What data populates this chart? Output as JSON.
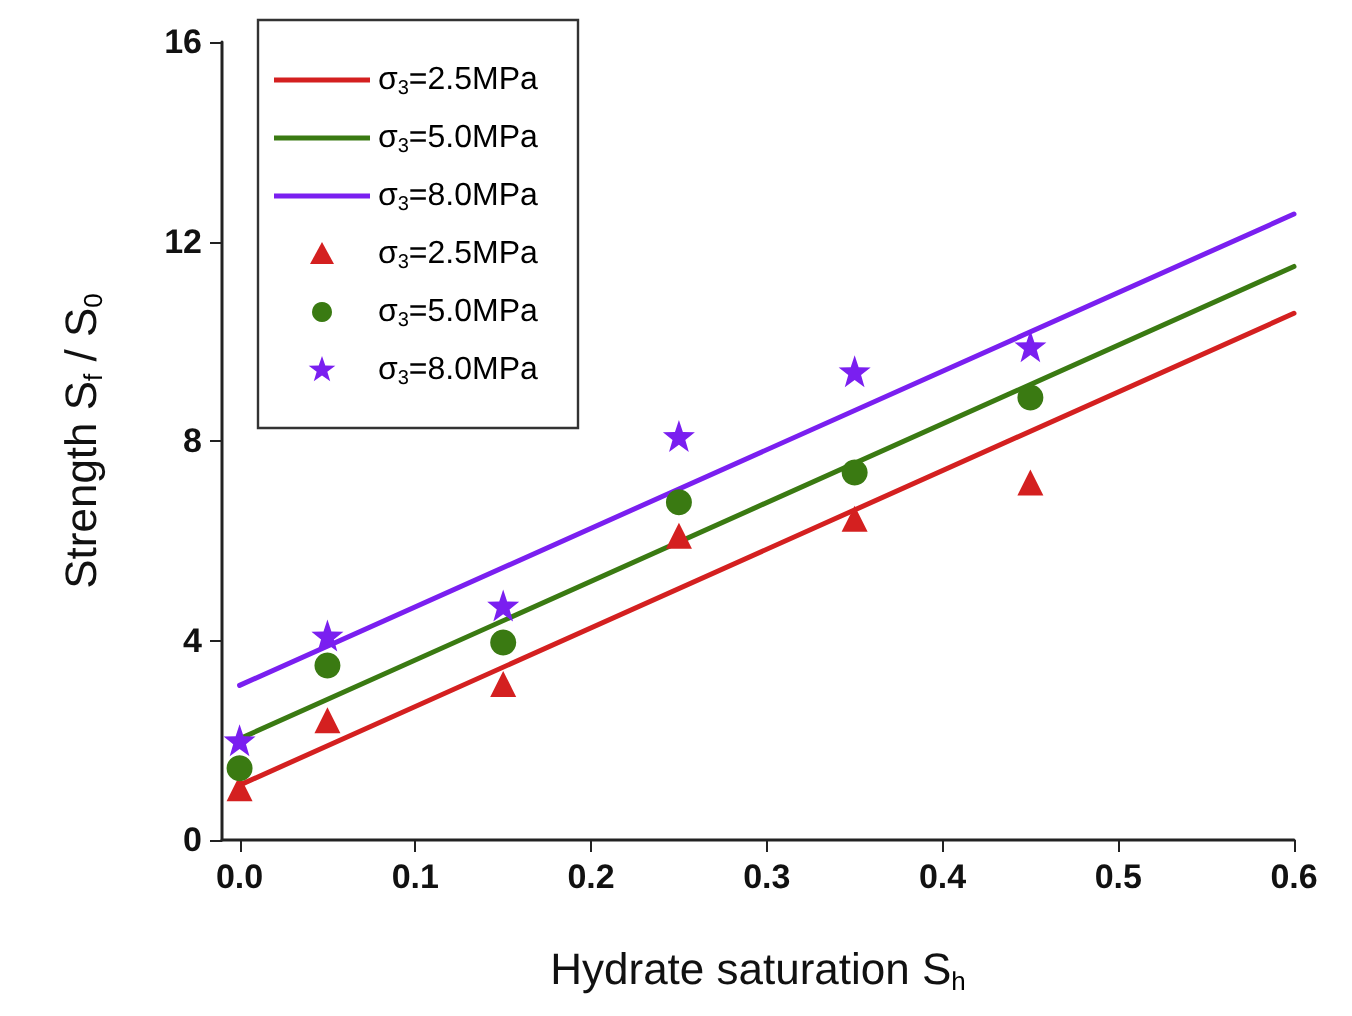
{
  "chart_data": {
    "type": "scatter",
    "xlabel": "Hydrate saturation S$_{h}$",
    "ylabel": "Strength S$_{f}$ / S$_{0}$",
    "xlim": [
      -0.01,
      0.6
    ],
    "xticks": [
      {
        "value": 0,
        "label": "0.0"
      },
      0.1,
      0.2,
      0.3,
      0.4,
      0.5,
      0.6
    ],
    "ylim": [
      0,
      16
    ],
    "yticks": [
      0,
      4,
      8,
      12,
      16
    ],
    "grid": false,
    "legend": "top left",
    "series": [
      {
        "name": "σ$_{3}$=2.5MPa",
        "type": "line",
        "color": "#d42020",
        "marker": "none",
        "line_style": "solid",
        "x": [
          0,
          0.6
        ],
        "values": [
          1.1,
          10.56
        ]
      },
      {
        "name": "σ$_{3}$=5.0MPa",
        "type": "line",
        "color": "#3a7a12",
        "marker": "none",
        "line_style": "solid",
        "x": [
          0,
          0.6
        ],
        "values": [
          2.03,
          11.5
        ]
      },
      {
        "name": "σ$_{3}$=8.0MPa",
        "type": "line",
        "color": "#7a1ff0",
        "marker": "none",
        "line_style": "solid",
        "x": [
          0,
          0.6
        ],
        "values": [
          3.1,
          12.55
        ]
      },
      {
        "name": "σ$_{3}$=2.5MPa",
        "color": "#d42020",
        "marker": "triangle",
        "x": [
          0,
          0.05,
          0.15,
          0.25,
          0.35,
          0.45
        ],
        "values": [
          1.04,
          2.4,
          3.13,
          6.1,
          6.44,
          7.17
        ]
      },
      {
        "name": "σ$_{3}$=5.0MPa",
        "color": "#3a7a12",
        "marker": "circle",
        "x": [
          0,
          0.05,
          0.15,
          0.25,
          0.35,
          0.45
        ],
        "values": [
          1.44,
          3.5,
          3.96,
          6.77,
          7.37,
          8.87
        ]
      },
      {
        "name": "σ$_{3}$=8.0MPa",
        "color": "#7a1ff0",
        "marker": "star",
        "x": [
          0,
          0.05,
          0.15,
          0.25,
          0.35,
          0.45
        ],
        "values": [
          2.0,
          4.1,
          4.7,
          8.1,
          9.4,
          9.9
        ]
      }
    ]
  }
}
